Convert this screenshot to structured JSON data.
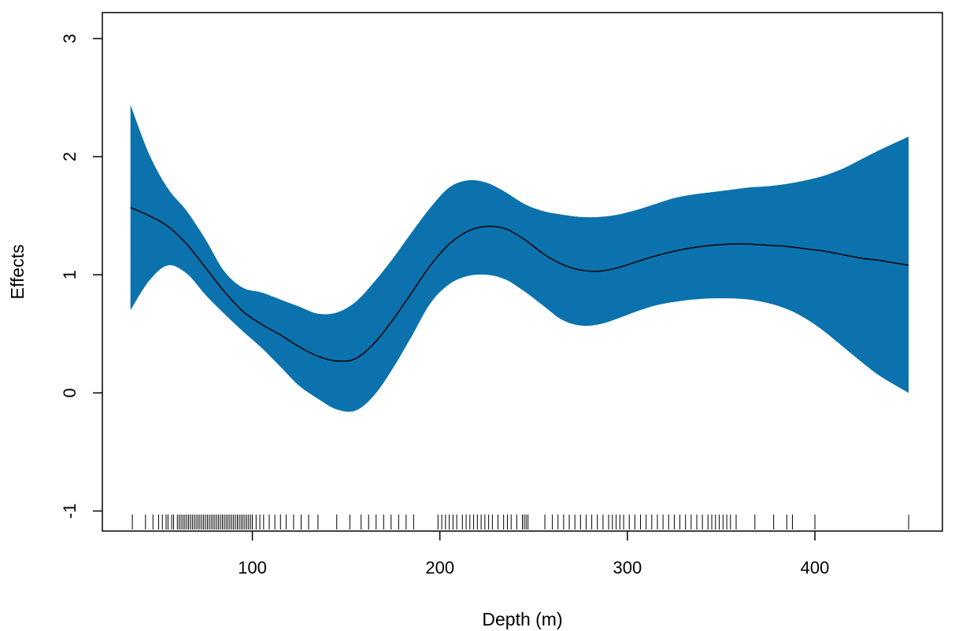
{
  "chart_data": {
    "type": "area",
    "xlabel": "Depth (m)",
    "ylabel": "Effects",
    "xlim": [
      20,
      468
    ],
    "ylim": [
      -1.17,
      3.22
    ],
    "xticks": [
      100,
      200,
      300,
      400
    ],
    "yticks": [
      -1,
      0,
      1,
      2,
      3
    ],
    "grid": false,
    "band_color": "#0b72ad",
    "line_color": "#000000",
    "series": [
      {
        "x": [
          35,
          45,
          55,
          65,
          75,
          85,
          95,
          105,
          115,
          125,
          135,
          145,
          155,
          165,
          175,
          185,
          195,
          205,
          215,
          225,
          235,
          245,
          255,
          265,
          275,
          285,
          295,
          305,
          315,
          325,
          335,
          345,
          355,
          365,
          375,
          385,
          395,
          405,
          415,
          425,
          435,
          450
        ],
        "y": [
          1.57,
          1.5,
          1.41,
          1.26,
          1.06,
          0.86,
          0.69,
          0.58,
          0.49,
          0.39,
          0.31,
          0.27,
          0.29,
          0.42,
          0.62,
          0.85,
          1.08,
          1.26,
          1.37,
          1.41,
          1.39,
          1.3,
          1.18,
          1.09,
          1.04,
          1.03,
          1.06,
          1.11,
          1.16,
          1.2,
          1.23,
          1.25,
          1.26,
          1.26,
          1.25,
          1.24,
          1.22,
          1.2,
          1.17,
          1.14,
          1.12,
          1.08
        ],
        "upper": [
          2.44,
          2.02,
          1.73,
          1.54,
          1.3,
          1.03,
          0.89,
          0.85,
          0.79,
          0.73,
          0.67,
          0.68,
          0.77,
          0.94,
          1.14,
          1.36,
          1.57,
          1.74,
          1.8,
          1.78,
          1.7,
          1.6,
          1.54,
          1.51,
          1.49,
          1.49,
          1.51,
          1.55,
          1.6,
          1.65,
          1.68,
          1.7,
          1.72,
          1.74,
          1.75,
          1.77,
          1.8,
          1.84,
          1.9,
          1.98,
          2.06,
          2.17
        ],
        "lower": [
          0.7,
          0.95,
          1.08,
          1.01,
          0.83,
          0.67,
          0.52,
          0.38,
          0.22,
          0.06,
          -0.05,
          -0.14,
          -0.15,
          -0.02,
          0.21,
          0.48,
          0.76,
          0.92,
          0.99,
          1.0,
          0.96,
          0.86,
          0.74,
          0.62,
          0.57,
          0.58,
          0.63,
          0.69,
          0.74,
          0.77,
          0.79,
          0.8,
          0.8,
          0.79,
          0.76,
          0.71,
          0.63,
          0.52,
          0.39,
          0.26,
          0.14,
          0.0
        ]
      }
    ],
    "rug": [
      36,
      43,
      47,
      50,
      52,
      54,
      55,
      57,
      58,
      60,
      61,
      62,
      63,
      64,
      65,
      66,
      67,
      68,
      69,
      70,
      71,
      72,
      73,
      74,
      75,
      76,
      77,
      78,
      79,
      80,
      81,
      82,
      83,
      84,
      85,
      86,
      87,
      88,
      89,
      90,
      91,
      92,
      93,
      94,
      95,
      96,
      97,
      98,
      99,
      100,
      102,
      104,
      106,
      109,
      112,
      115,
      118,
      122,
      126,
      130,
      135,
      145,
      152,
      158,
      162,
      166,
      170,
      174,
      178,
      182,
      186,
      199,
      201,
      203,
      205,
      207,
      209,
      212,
      214,
      216,
      218,
      220,
      222,
      224,
      226,
      228,
      231,
      234,
      236,
      238,
      241,
      244,
      245,
      246,
      247,
      256,
      260,
      263,
      266,
      269,
      272,
      275,
      278,
      281,
      284,
      287,
      290,
      292,
      294,
      296,
      298,
      301,
      304,
      307,
      310,
      313,
      316,
      319,
      322,
      325,
      328,
      331,
      334,
      337,
      340,
      343,
      345,
      347,
      349,
      351,
      353,
      355,
      358,
      368,
      378,
      385,
      388,
      400,
      450
    ]
  }
}
